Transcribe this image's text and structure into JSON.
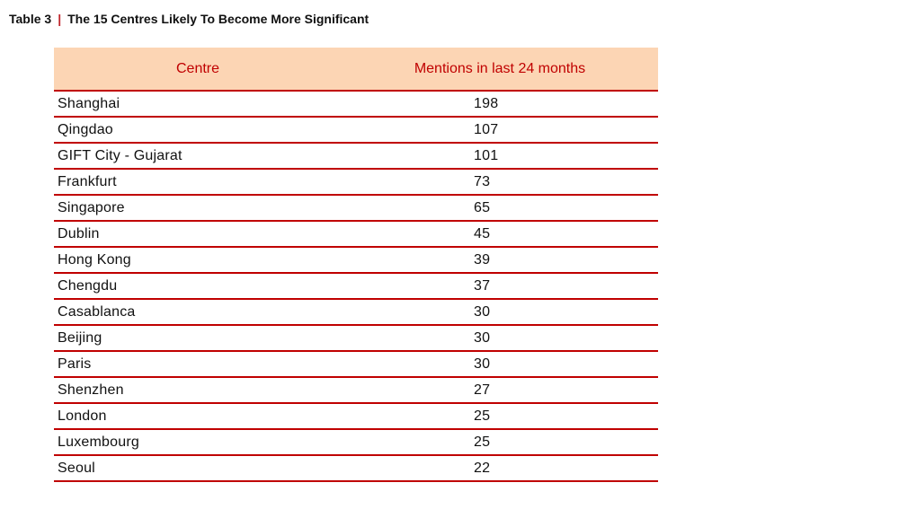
{
  "caption": {
    "label": "Table 3",
    "separator": "|",
    "title": "The 15 Centres Likely To Become More Significant"
  },
  "colors": {
    "header_bg": "#fcd5b4",
    "header_text": "#c00000",
    "rule": "#c00000"
  },
  "table": {
    "headers": [
      "Centre",
      "Mentions in last 24 months"
    ],
    "rows": [
      {
        "centre": "Shanghai",
        "mentions": "198"
      },
      {
        "centre": "Qingdao",
        "mentions": "107"
      },
      {
        "centre": "GIFT City - Gujarat",
        "mentions": "101"
      },
      {
        "centre": "Frankfurt",
        "mentions": "73"
      },
      {
        "centre": "Singapore",
        "mentions": "65"
      },
      {
        "centre": "Dublin",
        "mentions": "45"
      },
      {
        "centre": "Hong Kong",
        "mentions": "39"
      },
      {
        "centre": "Chengdu",
        "mentions": "37"
      },
      {
        "centre": "Casablanca",
        "mentions": "30"
      },
      {
        "centre": "Beijing",
        "mentions": "30"
      },
      {
        "centre": "Paris",
        "mentions": "30"
      },
      {
        "centre": "Shenzhen",
        "mentions": "27"
      },
      {
        "centre": "London",
        "mentions": "25"
      },
      {
        "centre": "Luxembourg",
        "mentions": "25"
      },
      {
        "centre": "Seoul",
        "mentions": "22"
      }
    ]
  }
}
